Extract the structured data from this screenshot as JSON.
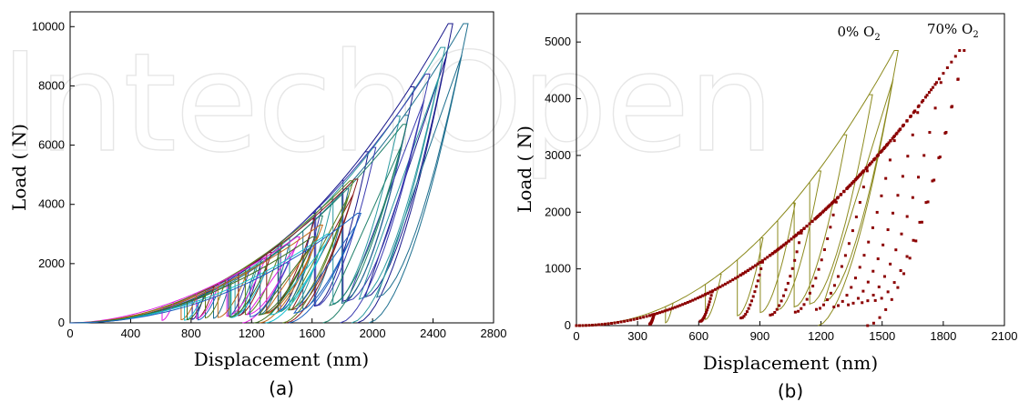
{
  "figure": {
    "watermark": "IntechOpen",
    "watermark_color": "#e6e6e6"
  },
  "chart_data": [
    {
      "type": "line",
      "caption": "(a)",
      "xlabel": "Displacement (nm)",
      "ylabel": "Load (  N)",
      "xlim": [
        0,
        2800
      ],
      "ylim": [
        0,
        10500
      ],
      "xticks": [
        0,
        400,
        800,
        1200,
        1600,
        2000,
        2400,
        2800
      ],
      "yticks": [
        0,
        2000,
        4000,
        6000,
        8000,
        10000
      ],
      "grid": false,
      "legend": "none",
      "series": [
        {
          "color": "#1a1a8c",
          "loading_exponent": 2.25,
          "x_max": 2500,
          "y_max": 10100,
          "cycles": [
            0.35,
            0.5,
            0.64,
            0.78,
            0.9,
            1.0
          ]
        },
        {
          "color": "#1e6f8f",
          "loading_exponent": 2.25,
          "x_max": 2600,
          "y_max": 10100,
          "cycles": [
            0.4,
            0.55,
            0.7,
            0.85,
            1.0
          ]
        },
        {
          "color": "#2c9aa0",
          "loading_exponent": 2.25,
          "x_max": 2450,
          "y_max": 9300,
          "cycles": [
            0.5,
            0.7,
            0.88,
            1.0
          ]
        },
        {
          "color": "#3a3ab0",
          "loading_exponent": 2.15,
          "x_max": 2350,
          "y_max": 8400,
          "cycles": [
            0.5,
            0.7,
            0.85,
            1.0
          ]
        },
        {
          "color": "#20806a",
          "loading_exponent": 2.15,
          "x_max": 2200,
          "y_max": 6700,
          "cycles": [
            0.55,
            0.75,
            1.0
          ]
        },
        {
          "color": "#8a1a1a",
          "loading_exponent": 2.0,
          "x_max": 1880,
          "y_max": 4850,
          "cycles": [
            0.5,
            0.7,
            0.85,
            1.0
          ]
        },
        {
          "color": "#5a7f1a",
          "loading_exponent": 2.0,
          "x_max": 1850,
          "y_max": 4800,
          "cycles": [
            0.55,
            0.75,
            1.0
          ]
        },
        {
          "color": "#e01ee0",
          "loading_exponent": 1.8,
          "x_max": 1500,
          "y_max": 2900,
          "cycles": [
            0.45,
            0.65,
            0.85,
            1.0
          ]
        },
        {
          "color": "#c06a1a",
          "loading_exponent": 1.9,
          "x_max": 1650,
          "y_max": 3300,
          "cycles": [
            0.5,
            0.7,
            1.0
          ]
        },
        {
          "color": "#19c0d0",
          "loading_exponent": 2.0,
          "x_max": 1700,
          "y_max": 3000,
          "cycles": [
            0.5,
            0.75,
            1.0
          ]
        },
        {
          "color": "#3c6e1e",
          "loading_exponent": 1.95,
          "x_max": 1600,
          "y_max": 2900,
          "cycles": [
            0.55,
            0.8,
            1.0
          ]
        },
        {
          "color": "#1a5fbf",
          "loading_exponent": 2.1,
          "x_max": 1900,
          "y_max": 3700,
          "cycles": [
            0.5,
            0.75,
            1.0
          ]
        }
      ]
    },
    {
      "type": "line",
      "caption": "(b)",
      "xlabel": "Displacement (nm)",
      "ylabel": "Load (  N)",
      "xlim": [
        0,
        2100
      ],
      "ylim": [
        0,
        5500
      ],
      "xticks": [
        0,
        300,
        600,
        900,
        1200,
        1500,
        1800,
        2100
      ],
      "yticks": [
        0,
        1000,
        2000,
        3000,
        4000,
        5000
      ],
      "grid": false,
      "legend": "none",
      "annotations": [
        {
          "text": "0% O",
          "sub": "2",
          "x": 1280,
          "y": 5100
        },
        {
          "text": "70% O",
          "sub": "2",
          "x": 1720,
          "y": 5150
        }
      ],
      "series": [
        {
          "color": "#8c8a1e",
          "style": "line",
          "loading_exponent": 2.1,
          "x_max": 1560,
          "y_max": 4850,
          "cycles": [
            0.3,
            0.45,
            0.58,
            0.68,
            0.76,
            0.84,
            0.92,
            1.0
          ]
        },
        {
          "color": "#8b0000",
          "style": "dots",
          "loading_exponent": 2.0,
          "x_max": 1880,
          "y_max": 4850,
          "cycles": [
            0.2,
            0.35,
            0.48,
            0.58,
            0.67,
            0.75,
            0.82,
            0.88,
            0.94,
            1.0
          ]
        }
      ]
    }
  ]
}
